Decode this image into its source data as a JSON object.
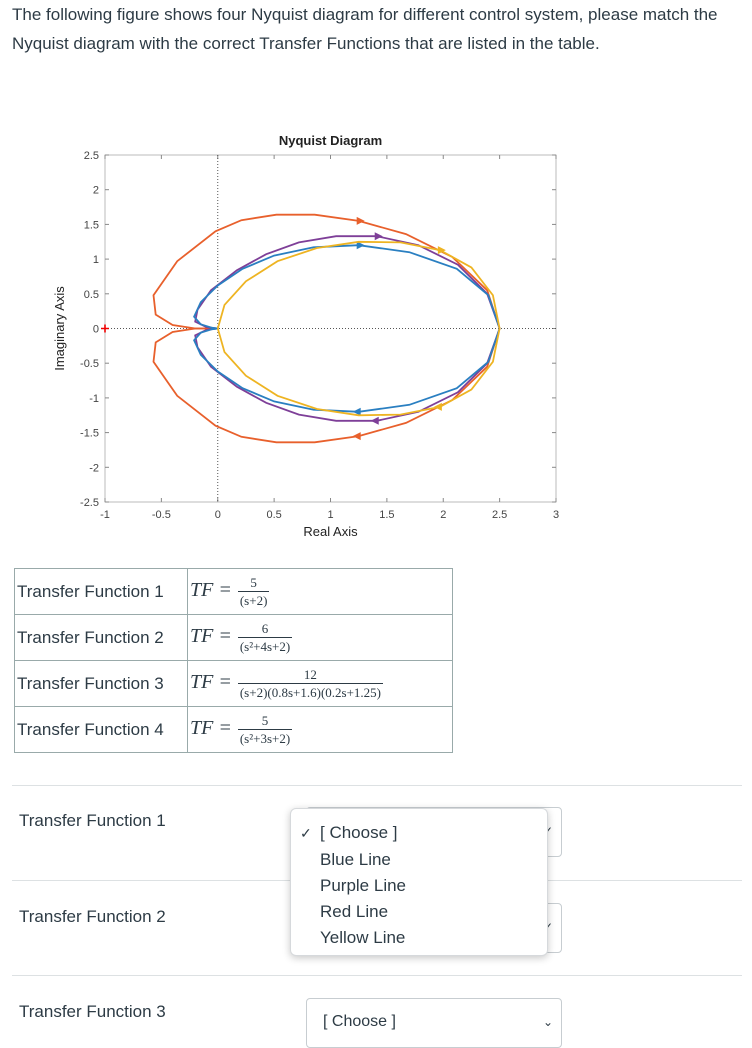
{
  "question": "The following figure shows four Nyquist diagram for different control system, please match the Nyquist diagram with the correct Transfer Functions that are listed in the table.",
  "chart_data": {
    "type": "line",
    "title": "Nyquist Diagram",
    "xlabel": "Real Axis",
    "ylabel": "Imaginary Axis",
    "xlim": [
      -1,
      3
    ],
    "ylim": [
      -2.5,
      2.5
    ],
    "xticks": [
      "-1",
      "-0.5",
      "0",
      "0.5",
      "1",
      "1.5",
      "2",
      "2.5",
      "3"
    ],
    "yticks": [
      "2.5",
      "2",
      "1.5",
      "1",
      "0.5",
      "0",
      "-0.5",
      "-1",
      "-1.5",
      "-2",
      "-2.5"
    ],
    "grid": false,
    "critical_point": [
      -1,
      0
    ],
    "series": [
      {
        "color": "#e8602c",
        "x": [
          2.5,
          2.39,
          2.08,
          1.67,
          1.25,
          0.86,
          0.52,
          0.21,
          -0.02,
          -0.36,
          -0.57,
          -0.55,
          -0.4,
          -0.2,
          0
        ],
        "y": [
          0,
          0.55,
          1.03,
          1.36,
          1.55,
          1.64,
          1.64,
          1.56,
          1.4,
          0.97,
          0.48,
          0.2,
          0.05,
          0.0,
          0
        ]
      },
      {
        "color": "#7e3f98",
        "x": [
          2.5,
          2.39,
          2.13,
          1.78,
          1.41,
          1.05,
          0.72,
          0.43,
          0.17,
          -0.06,
          -0.18,
          -0.2,
          -0.1,
          0
        ],
        "y": [
          0,
          0.5,
          0.92,
          1.2,
          1.33,
          1.33,
          1.24,
          1.07,
          0.84,
          0.55,
          0.27,
          0.1,
          0.02,
          0
        ]
      },
      {
        "color": "#2a7fc1",
        "x": [
          2.5,
          2.4,
          2.12,
          1.7,
          1.25,
          0.85,
          0.5,
          0.22,
          0.0,
          -0.15,
          -0.21,
          -0.15,
          -0.05,
          0
        ],
        "y": [
          0,
          0.48,
          0.86,
          1.1,
          1.2,
          1.17,
          1.05,
          0.86,
          0.62,
          0.38,
          0.17,
          0.06,
          0.01,
          0
        ]
      },
      {
        "color": "#eeb422",
        "x": [
          2.5,
          2.44,
          2.25,
          1.97,
          1.62,
          1.25,
          0.88,
          0.53,
          0.25,
          0.06,
          0
        ],
        "y": [
          0,
          0.48,
          0.88,
          1.13,
          1.24,
          1.25,
          1.16,
          0.97,
          0.68,
          0.34,
          0
        ]
      }
    ]
  },
  "table": [
    {
      "label": "Transfer Function 1",
      "lhs": "TF =",
      "num": "5",
      "den": "(s+2)"
    },
    {
      "label": "Transfer Function 2",
      "lhs": "TF =",
      "num": "6",
      "den": "(s²+4s+2)"
    },
    {
      "label": "Transfer Function 3",
      "lhs": "TF =",
      "num": "12",
      "den": "(s+2)(0.8s+1.6)(0.2s+1.25)"
    },
    {
      "label": "Transfer Function 4",
      "lhs": "TF =",
      "num": "5",
      "den": "(s²+3s+2)"
    }
  ],
  "answers": [
    {
      "label": "Transfer Function 1"
    },
    {
      "label": "Transfer Function 2"
    },
    {
      "label": "Transfer Function 3",
      "value": "[ Choose ]"
    }
  ],
  "dropdown": {
    "options": [
      "[ Choose ]",
      "Blue Line",
      "Purple Line",
      "Red Line",
      "Yellow Line"
    ],
    "selected_index": 0,
    "check_icon": "checkmark-icon"
  }
}
